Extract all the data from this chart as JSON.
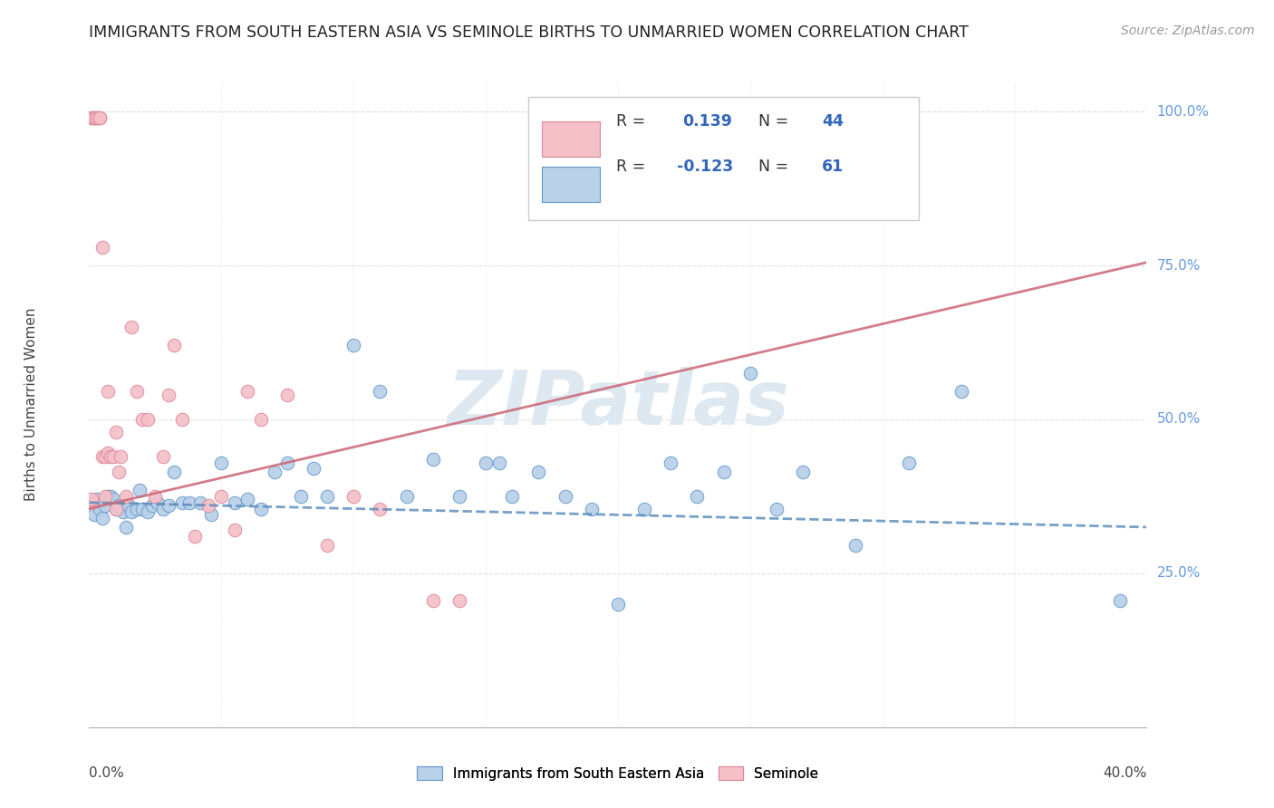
{
  "title": "IMMIGRANTS FROM SOUTH EASTERN ASIA VS SEMINOLE BIRTHS TO UNMARRIED WOMEN CORRELATION CHART",
  "source": "Source: ZipAtlas.com",
  "ylabel": "Births to Unmarried Women",
  "legend_label1": "Immigrants from South Eastern Asia",
  "legend_label2": "Seminole",
  "R1": "-0.123",
  "N1": "61",
  "R2": "0.139",
  "N2": "44",
  "blue_fill": "#b8d0e8",
  "blue_edge": "#6699cc",
  "pink_fill": "#f5c0c8",
  "pink_edge": "#dd8899",
  "blue_line": "#5588bb",
  "pink_line": "#cc6677",
  "watermark": "ZIPatlas",
  "watermark_color": "#dde8f0",
  "grid_color": "#e0e0e0",
  "right_label_color": "#6699dd",
  "blue_x": [
    0.001,
    0.002,
    0.003,
    0.004,
    0.005,
    0.006,
    0.007,
    0.008,
    0.009,
    0.01,
    0.011,
    0.012,
    0.013,
    0.014,
    0.015,
    0.016,
    0.018,
    0.019,
    0.02,
    0.022,
    0.024,
    0.026,
    0.028,
    0.03,
    0.032,
    0.035,
    0.038,
    0.042,
    0.046,
    0.05,
    0.055,
    0.06,
    0.065,
    0.07,
    0.075,
    0.08,
    0.085,
    0.09,
    0.1,
    0.11,
    0.12,
    0.13,
    0.14,
    0.15,
    0.155,
    0.16,
    0.17,
    0.18,
    0.19,
    0.2,
    0.21,
    0.22,
    0.23,
    0.24,
    0.25,
    0.26,
    0.27,
    0.29,
    0.31,
    0.33,
    0.39
  ],
  "blue_y": [
    0.365,
    0.345,
    0.37,
    0.355,
    0.34,
    0.36,
    0.375,
    0.375,
    0.37,
    0.355,
    0.36,
    0.355,
    0.35,
    0.325,
    0.36,
    0.35,
    0.355,
    0.385,
    0.355,
    0.35,
    0.36,
    0.365,
    0.355,
    0.36,
    0.415,
    0.365,
    0.365,
    0.365,
    0.345,
    0.43,
    0.365,
    0.37,
    0.355,
    0.415,
    0.43,
    0.375,
    0.42,
    0.375,
    0.62,
    0.545,
    0.375,
    0.435,
    0.375,
    0.43,
    0.43,
    0.375,
    0.415,
    0.375,
    0.355,
    0.2,
    0.355,
    0.43,
    0.375,
    0.415,
    0.575,
    0.355,
    0.415,
    0.295,
    0.43,
    0.545,
    0.205
  ],
  "pink_x": [
    0.001,
    0.001,
    0.001,
    0.001,
    0.002,
    0.002,
    0.003,
    0.003,
    0.004,
    0.004,
    0.005,
    0.005,
    0.006,
    0.006,
    0.007,
    0.007,
    0.008,
    0.009,
    0.01,
    0.011,
    0.012,
    0.014,
    0.016,
    0.018,
    0.02,
    0.022,
    0.025,
    0.028,
    0.03,
    0.032,
    0.035,
    0.04,
    0.045,
    0.05,
    0.055,
    0.06,
    0.065,
    0.075,
    0.09,
    0.1,
    0.11,
    0.13,
    0.14,
    0.01
  ],
  "pink_y": [
    0.365,
    0.37,
    0.99,
    0.99,
    0.99,
    0.99,
    0.99,
    0.99,
    0.99,
    0.99,
    0.78,
    0.44,
    0.375,
    0.44,
    0.445,
    0.545,
    0.44,
    0.44,
    0.48,
    0.415,
    0.44,
    0.375,
    0.65,
    0.545,
    0.5,
    0.5,
    0.375,
    0.44,
    0.54,
    0.62,
    0.5,
    0.31,
    0.36,
    0.375,
    0.32,
    0.545,
    0.5,
    0.54,
    0.295,
    0.375,
    0.355,
    0.205,
    0.205,
    0.355
  ],
  "xlim": [
    0.0,
    0.4
  ],
  "ylim": [
    0.0,
    1.05
  ],
  "xgrid": [
    0.05,
    0.1,
    0.15,
    0.2,
    0.25,
    0.3,
    0.35
  ],
  "ygrid": [
    0.25,
    0.5,
    0.75,
    1.0
  ],
  "blue_trend_x": [
    0.0,
    0.4
  ],
  "blue_trend_y": [
    0.365,
    0.325
  ],
  "pink_trend_x": [
    0.0,
    0.14
  ],
  "pink_trend_y": [
    0.36,
    0.6
  ]
}
